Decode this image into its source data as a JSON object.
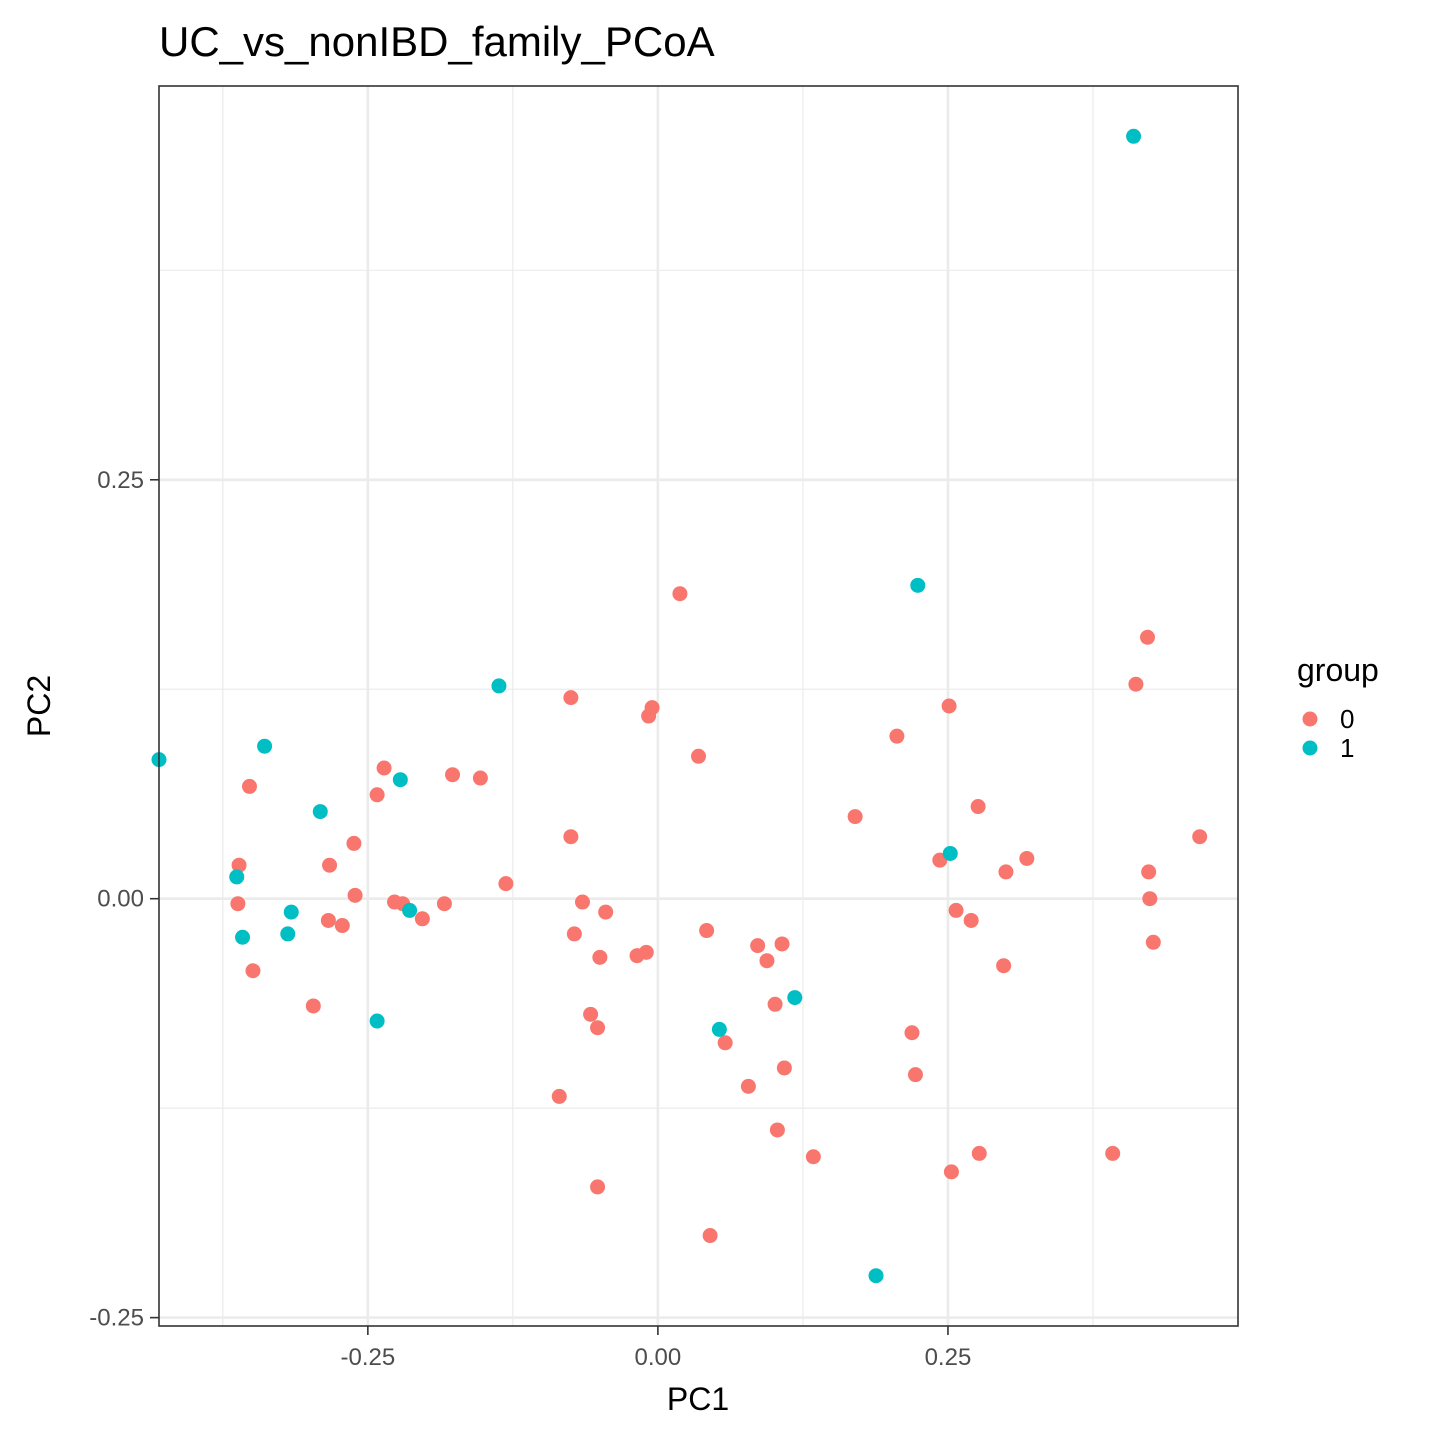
{
  "chart_data": {
    "type": "scatter",
    "title": "UC_vs_nonIBD_family_PCoA",
    "xlabel": "PC1",
    "ylabel": "PC2",
    "xlim": [
      -0.43,
      0.5
    ],
    "ylim": [
      -0.255,
      0.485
    ],
    "xticks": [
      -0.25,
      0.0,
      0.25
    ],
    "xtick_labels": [
      "-0.25",
      "0.00",
      "0.25"
    ],
    "yticks": [
      -0.25,
      0.0,
      0.25
    ],
    "ytick_labels": [
      "-0.25",
      "0.00",
      "0.25"
    ],
    "grid": true,
    "legend": {
      "title": "group",
      "position": "right"
    },
    "series": [
      {
        "name": "0",
        "color": "#F8766D",
        "points": [
          [
            0.019,
            0.182
          ],
          [
            -0.075,
            0.12
          ],
          [
            -0.005,
            0.114
          ],
          [
            -0.008,
            0.109
          ],
          [
            0.035,
            0.085
          ],
          [
            0.422,
            0.156
          ],
          [
            0.412,
            0.128
          ],
          [
            0.251,
            0.115
          ],
          [
            0.206,
            0.097
          ],
          [
            0.276,
            0.055
          ],
          [
            0.17,
            0.049
          ],
          [
            0.467,
            0.037
          ],
          [
            0.318,
            0.024
          ],
          [
            0.243,
            0.023
          ],
          [
            0.3,
            0.016
          ],
          [
            0.423,
            0.016
          ],
          [
            0.424,
            0.0
          ],
          [
            0.257,
            -0.007
          ],
          [
            0.27,
            -0.013
          ],
          [
            0.427,
            -0.026
          ],
          [
            0.298,
            -0.04
          ],
          [
            -0.236,
            0.078
          ],
          [
            -0.177,
            0.074
          ],
          [
            -0.153,
            0.072
          ],
          [
            -0.242,
            0.062
          ],
          [
            -0.352,
            0.067
          ],
          [
            -0.075,
            0.037
          ],
          [
            -0.262,
            0.033
          ],
          [
            -0.283,
            0.02
          ],
          [
            -0.361,
            0.02
          ],
          [
            -0.131,
            0.009
          ],
          [
            -0.261,
            0.002
          ],
          [
            -0.227,
            -0.002
          ],
          [
            -0.22,
            -0.003
          ],
          [
            -0.184,
            -0.003
          ],
          [
            -0.362,
            -0.003
          ],
          [
            -0.065,
            -0.002
          ],
          [
            -0.045,
            -0.008
          ],
          [
            -0.203,
            -0.012
          ],
          [
            -0.284,
            -0.013
          ],
          [
            -0.272,
            -0.016
          ],
          [
            0.042,
            -0.019
          ],
          [
            -0.072,
            -0.021
          ],
          [
            0.086,
            -0.028
          ],
          [
            0.107,
            -0.027
          ],
          [
            -0.05,
            -0.035
          ],
          [
            -0.01,
            -0.032
          ],
          [
            -0.018,
            -0.034
          ],
          [
            0.094,
            -0.037
          ],
          [
            -0.349,
            -0.043
          ],
          [
            -0.297,
            -0.064
          ],
          [
            0.101,
            -0.063
          ],
          [
            -0.058,
            -0.069
          ],
          [
            -0.052,
            -0.077
          ],
          [
            0.058,
            -0.086
          ],
          [
            0.219,
            -0.08
          ],
          [
            0.109,
            -0.101
          ],
          [
            0.222,
            -0.105
          ],
          [
            0.078,
            -0.112
          ],
          [
            -0.085,
            -0.118
          ],
          [
            0.103,
            -0.138
          ],
          [
            0.134,
            -0.154
          ],
          [
            0.277,
            -0.152
          ],
          [
            0.392,
            -0.152
          ],
          [
            0.253,
            -0.163
          ],
          [
            -0.052,
            -0.172
          ],
          [
            0.045,
            -0.201
          ]
        ]
      },
      {
        "name": "1",
        "color": "#00BFC4",
        "points": [
          [
            0.41,
            0.455
          ],
          [
            0.224,
            0.187
          ],
          [
            -0.137,
            0.127
          ],
          [
            -0.43,
            0.083
          ],
          [
            -0.339,
            0.091
          ],
          [
            -0.222,
            0.071
          ],
          [
            -0.291,
            0.052
          ],
          [
            -0.363,
            0.013
          ],
          [
            0.252,
            0.027
          ],
          [
            -0.316,
            -0.008
          ],
          [
            -0.214,
            -0.007
          ],
          [
            -0.358,
            -0.023
          ],
          [
            -0.319,
            -0.021
          ],
          [
            0.118,
            -0.059
          ],
          [
            -0.242,
            -0.073
          ],
          [
            0.053,
            -0.078
          ],
          [
            0.188,
            -0.225
          ]
        ]
      }
    ]
  }
}
